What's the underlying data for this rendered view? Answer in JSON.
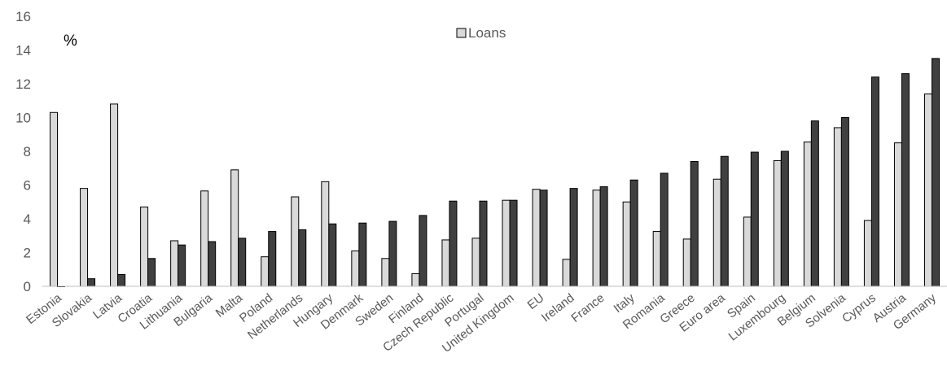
{
  "chart_data": {
    "type": "bar",
    "unit_label": "%",
    "categories": [
      "Estonia",
      "Slovakia",
      "Latvia",
      "Croatia",
      "Lithuania",
      "Bulgaria",
      "Malta",
      "Poland",
      "Netherlands",
      "Hungary",
      "Denmark",
      "Sweden",
      "Finland",
      "Czech Republic",
      "Portugal",
      "United Kingdom",
      "EU",
      "Ireland",
      "France",
      "Italy",
      "Romania",
      "Greece",
      "Euro area",
      "Spain",
      "Luxembourg",
      "Belgium",
      "Solvenia",
      "Cyprus",
      "Austria",
      "Germany"
    ],
    "series": [
      {
        "name": "Loans",
        "color": "#d9d9d9",
        "values": [
          10.3,
          5.8,
          10.8,
          4.7,
          2.7,
          5.65,
          6.9,
          1.75,
          5.3,
          6.2,
          2.1,
          1.65,
          0.75,
          2.75,
          2.85,
          5.1,
          5.75,
          1.6,
          5.7,
          5.0,
          3.25,
          2.8,
          6.35,
          4.1,
          7.45,
          8.55,
          9.4,
          3.9,
          8.5,
          11.4
        ]
      },
      {
        "name": "",
        "color": "#404040",
        "values": [
          0.0,
          0.45,
          0.7,
          1.65,
          2.45,
          2.65,
          2.85,
          3.25,
          3.35,
          3.7,
          3.75,
          3.85,
          4.2,
          5.05,
          5.05,
          5.1,
          5.7,
          5.8,
          5.9,
          6.3,
          6.7,
          7.4,
          7.7,
          7.95,
          8.0,
          9.8,
          10.0,
          12.4,
          12.6,
          13.5
        ]
      }
    ],
    "ylim": [
      0,
      16
    ],
    "yticks": [
      0,
      2,
      4,
      6,
      8,
      10,
      12,
      14,
      16
    ],
    "grid": false,
    "legend_position": "top-center"
  }
}
